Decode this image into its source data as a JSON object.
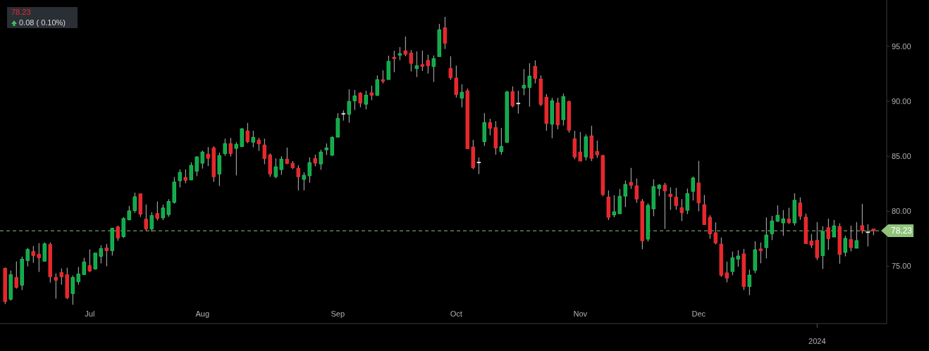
{
  "chart_data": {
    "type": "candlestick",
    "categories": [
      null,
      null,
      null,
      null,
      null,
      null,
      null,
      null,
      null,
      null,
      null,
      null,
      null,
      null,
      null,
      "Jul",
      null,
      null,
      null,
      null,
      null,
      null,
      null,
      null,
      null,
      null,
      null,
      null,
      null,
      null,
      null,
      null,
      null,
      null,
      null,
      "Aug",
      null,
      null,
      null,
      null,
      null,
      null,
      null,
      null,
      null,
      null,
      null,
      null,
      null,
      null,
      null,
      null,
      null,
      null,
      null,
      null,
      null,
      null,
      null,
      "Sep",
      null,
      null,
      null,
      null,
      null,
      null,
      null,
      null,
      null,
      null,
      null,
      null,
      null,
      null,
      null,
      null,
      null,
      null,
      null,
      null,
      "Oct",
      null,
      null,
      null,
      null,
      null,
      null,
      null,
      null,
      null,
      null,
      null,
      null,
      null,
      null,
      null,
      null,
      null,
      null,
      null,
      null,
      null,
      "Nov",
      null,
      null,
      null,
      null,
      null,
      null,
      null,
      null,
      null,
      null,
      null,
      null,
      null,
      null,
      null,
      null,
      null,
      null,
      null,
      null,
      "Dec",
      null,
      null,
      null,
      null,
      null,
      null,
      null,
      null,
      null,
      null,
      null,
      null,
      null,
      null,
      null,
      null,
      null,
      null,
      null,
      null,
      "2024",
      null,
      null,
      null,
      null,
      null,
      null,
      null,
      null,
      null,
      null
    ],
    "ohlc": [
      [
        74.81,
        74.9,
        71.57,
        71.79
      ],
      [
        72.0,
        74.62,
        71.89,
        74.23
      ],
      [
        73.98,
        75.45,
        72.98,
        73.08
      ],
      [
        73.29,
        75.89,
        72.85,
        75.64
      ],
      [
        75.53,
        76.66,
        75.0,
        76.53
      ],
      [
        76.34,
        76.85,
        75.32,
        75.98
      ],
      [
        76.09,
        77.11,
        74.49,
        75.77
      ],
      [
        75.47,
        77.17,
        75.47,
        77.04
      ],
      [
        76.98,
        77.17,
        73.53,
        74.06
      ],
      [
        73.98,
        74.36,
        72.06,
        73.74
      ],
      [
        74.43,
        74.81,
        73.34,
        74.06
      ],
      [
        74.23,
        74.87,
        72.02,
        72.15
      ],
      [
        72.53,
        74.17,
        71.51,
        73.98
      ],
      [
        73.61,
        74.94,
        73.34,
        74.3
      ],
      [
        74.25,
        75.77,
        74.25,
        75.38
      ],
      [
        75.06,
        76.53,
        74.49,
        74.57
      ],
      [
        74.76,
        76.21,
        74.7,
        76.21
      ],
      [
        75.91,
        76.92,
        75.26,
        76.6
      ],
      [
        76.66,
        77.04,
        75.0,
        76.42
      ],
      [
        76.42,
        78.51,
        75.98,
        78.45
      ],
      [
        78.58,
        78.7,
        77.32,
        77.57
      ],
      [
        77.7,
        79.47,
        77.57,
        79.34
      ],
      [
        79.23,
        80.49,
        79.17,
        80.04
      ],
      [
        80.06,
        81.7,
        79.87,
        81.32
      ],
      [
        81.58,
        81.64,
        79.49,
        79.74
      ],
      [
        79.28,
        80.62,
        78.21,
        78.4
      ],
      [
        78.4,
        79.92,
        78.15,
        79.6
      ],
      [
        79.79,
        80.89,
        79.17,
        79.36
      ],
      [
        79.4,
        80.6,
        79.2,
        80.3
      ],
      [
        79.7,
        81.1,
        79.5,
        80.9
      ],
      [
        80.81,
        83.11,
        80.68,
        82.66
      ],
      [
        82.77,
        83.81,
        82.17,
        83.54
      ],
      [
        83.09,
        83.81,
        82.54,
        82.81
      ],
      [
        82.84,
        84.45,
        82.84,
        84.18
      ],
      [
        83.64,
        85.03,
        83.19,
        84.94
      ],
      [
        84.37,
        85.52,
        83.88,
        85.39
      ],
      [
        85.2,
        85.84,
        84.11,
        84.81
      ],
      [
        85.77,
        85.9,
        82.68,
        83.13
      ],
      [
        83.38,
        85.33,
        82.3,
        85.07
      ],
      [
        85.24,
        86.6,
        85.04,
        86.16
      ],
      [
        86.16,
        86.67,
        84.98,
        85.24
      ],
      [
        85.71,
        86.28,
        83.26,
        86.09
      ],
      [
        85.87,
        87.56,
        85.87,
        87.5
      ],
      [
        87.31,
        88.03,
        86.19,
        86.32
      ],
      [
        86.28,
        87.31,
        85.81,
        86.73
      ],
      [
        86.48,
        86.67,
        85.49,
        86.13
      ],
      [
        86.03,
        86.6,
        84.28,
        84.79
      ],
      [
        85.13,
        85.26,
        83.13,
        83.38
      ],
      [
        83.15,
        84.81,
        83.0,
        84.05
      ],
      [
        83.79,
        85.01,
        83.32,
        84.75
      ],
      [
        84.75,
        85.79,
        84.28,
        84.34
      ],
      [
        84.37,
        84.56,
        83.83,
        83.96
      ],
      [
        83.92,
        84.18,
        81.9,
        83.13
      ],
      [
        82.9,
        83.54,
        81.9,
        83.28
      ],
      [
        83.22,
        84.9,
        82.6,
        84.43
      ],
      [
        84.81,
        85.15,
        84.09,
        84.37
      ],
      [
        84.3,
        85.6,
        83.77,
        85.39
      ],
      [
        85.58,
        86.17,
        85.11,
        85.77
      ],
      [
        85.09,
        86.81,
        85.03,
        86.73
      ],
      [
        86.73,
        88.92,
        86.73,
        88.45
      ],
      [
        88.9,
        89.18,
        88.24,
        88.9
      ],
      [
        88.81,
        91.09,
        88.05,
        89.99
      ],
      [
        90.03,
        91.03,
        89.2,
        90.5
      ],
      [
        90.75,
        90.82,
        89.45,
        89.83
      ],
      [
        89.73,
        90.96,
        89.26,
        90.56
      ],
      [
        90.77,
        91.41,
        90.09,
        90.54
      ],
      [
        90.54,
        92.35,
        90.47,
        91.97
      ],
      [
        91.97,
        92.82,
        91.62,
        91.81
      ],
      [
        91.97,
        94.14,
        91.97,
        93.63
      ],
      [
        94.0,
        94.58,
        92.64,
        93.86
      ],
      [
        94.18,
        94.92,
        93.73,
        94.33
      ],
      [
        94.59,
        95.88,
        94.09,
        94.27
      ],
      [
        94.39,
        94.65,
        92.71,
        93.44
      ],
      [
        92.96,
        94.54,
        92.2,
        93.22
      ],
      [
        93.33,
        94.6,
        92.75,
        93.16
      ],
      [
        93.71,
        94.22,
        92.52,
        93.22
      ],
      [
        93.16,
        94.16,
        91.75,
        93.88
      ],
      [
        94.05,
        97.03,
        94.05,
        96.5
      ],
      [
        96.69,
        97.67,
        94.75,
        95.26
      ],
      [
        92.99,
        94.09,
        91.94,
        92.13
      ],
      [
        92.11,
        93.24,
        90.34,
        90.6
      ],
      [
        90.28,
        91.54,
        89.45,
        90.82
      ],
      [
        90.95,
        91.16,
        85.68,
        85.68
      ],
      [
        85.84,
        86.49,
        83.83,
        83.96
      ],
      [
        84.47,
        84.9,
        83.38,
        84.47
      ],
      [
        86.32,
        88.92,
        85.94,
        88.07
      ],
      [
        88.07,
        88.41,
        86.9,
        87.54
      ],
      [
        87.62,
        88.2,
        85.15,
        85.75
      ],
      [
        85.43,
        87.58,
        85.15,
        85.9
      ],
      [
        86.26,
        90.96,
        86.26,
        90.84
      ],
      [
        90.88,
        91.35,
        89.45,
        89.58
      ],
      [
        89.83,
        90.96,
        88.88,
        89.83
      ],
      [
        91.2,
        92.92,
        90.54,
        91.46
      ],
      [
        91.26,
        93.45,
        89.51,
        92.29
      ],
      [
        93.18,
        93.71,
        91.62,
        92.07
      ],
      [
        92.03,
        92.35,
        89.56,
        89.71
      ],
      [
        90.37,
        90.65,
        87.32,
        87.98
      ],
      [
        87.92,
        90.31,
        86.64,
        90.05
      ],
      [
        89.86,
        90.31,
        87.45,
        87.85
      ],
      [
        88.33,
        90.69,
        87.79,
        90.43
      ],
      [
        89.99,
        90.05,
        87.15,
        87.37
      ],
      [
        86.6,
        87.32,
        84.73,
        84.94
      ],
      [
        85.39,
        87.2,
        84.56,
        84.56
      ],
      [
        84.94,
        87.0,
        84.62,
        86.77
      ],
      [
        86.86,
        87.77,
        84.56,
        84.81
      ],
      [
        85.45,
        86.43,
        84.85,
        85.13
      ],
      [
        85.07,
        85.15,
        81.37,
        81.53
      ],
      [
        81.3,
        81.9,
        79.2,
        79.45
      ],
      [
        79.66,
        81.45,
        79.45,
        79.96
      ],
      [
        79.77,
        82.02,
        79.77,
        81.37
      ],
      [
        81.37,
        82.79,
        80.38,
        82.45
      ],
      [
        82.64,
        83.94,
        82.04,
        82.36
      ],
      [
        82.32,
        82.98,
        80.77,
        81.11
      ],
      [
        80.92,
        81.11,
        76.55,
        77.32
      ],
      [
        77.47,
        80.73,
        77.25,
        80.54
      ],
      [
        80.22,
        82.9,
        79.55,
        82.26
      ],
      [
        82.07,
        82.47,
        81.39,
        82.39
      ],
      [
        82.39,
        82.6,
        78.4,
        81.85
      ],
      [
        81.56,
        82.17,
        80.13,
        81.34
      ],
      [
        81.3,
        82.13,
        80.15,
        80.51
      ],
      [
        80.34,
        81.11,
        79.11,
        79.87
      ],
      [
        80.09,
        82.07,
        79.74,
        81.62
      ],
      [
        81.81,
        83.16,
        80.98,
        83.03
      ],
      [
        82.58,
        84.58,
        80.0,
        80.77
      ],
      [
        80.6,
        81.49,
        78.79,
        78.79
      ],
      [
        79.45,
        79.64,
        77.51,
        77.96
      ],
      [
        78.05,
        79.0,
        77.0,
        77.13
      ],
      [
        77.02,
        77.62,
        74.06,
        74.19
      ],
      [
        74.41,
        75.43,
        73.55,
        73.93
      ],
      [
        74.53,
        76.34,
        74.19,
        75.77
      ],
      [
        75.66,
        76.47,
        74.96,
        75.94
      ],
      [
        76.13,
        76.58,
        72.85,
        73.17
      ],
      [
        73.17,
        74.7,
        72.38,
        74.21
      ],
      [
        74.64,
        77.28,
        74.38,
        76.51
      ],
      [
        76.58,
        77.17,
        75.27,
        76.42
      ],
      [
        76.7,
        79.45,
        75.72,
        77.85
      ],
      [
        77.96,
        79.58,
        77.38,
        79.13
      ],
      [
        79.11,
        80.54,
        79.02,
        79.64
      ],
      [
        78.94,
        80.11,
        77.77,
        79.32
      ],
      [
        79.28,
        80.32,
        78.85,
        78.98
      ],
      [
        78.94,
        81.64,
        78.7,
        81.0
      ],
      [
        80.75,
        81.26,
        79.23,
        79.55
      ],
      [
        79.47,
        79.79,
        77.06,
        77.06
      ],
      [
        77.3,
        77.94,
        76.66,
        76.92
      ],
      [
        77.36,
        79.02,
        75.57,
        75.79
      ],
      [
        75.98,
        78.64,
        74.76,
        78.17
      ],
      [
        78.51,
        79.34,
        76.49,
        77.51
      ],
      [
        77.66,
        79.21,
        77.66,
        78.68
      ],
      [
        78.62,
        78.91,
        75.24,
        76.07
      ],
      [
        76.26,
        77.79,
        75.91,
        77.54
      ],
      [
        77.43,
        78.7,
        76.36,
        76.7
      ],
      [
        76.64,
        79.02,
        76.64,
        77.34
      ],
      [
        78.7,
        80.68,
        77.98,
        78.24
      ],
      [
        78.13,
        78.83,
        76.81,
        78.13
      ],
      [
        78.4,
        78.4,
        77.83,
        78.23
      ]
    ],
    "colors": [
      "#e8272b",
      "#14a84b",
      "#e8272b",
      "#14a84b",
      "#14a84b",
      "#e8272b",
      "#e8272b",
      "#14a84b",
      "#e8272b",
      "#e8272b",
      "#e8272b",
      "#e8272b",
      "#14a84b",
      "#14a84b",
      "#14a84b",
      "#e8272b",
      "#14a84b",
      "#14a84b",
      "#e8272b",
      "#14a84b",
      "#e8272b",
      "#14a84b",
      "#14a84b",
      "#14a84b",
      "#e8272b",
      "#e8272b",
      "#14a84b",
      "#e8272b",
      "#14a84b",
      "#14a84b",
      "#14a84b",
      "#14a84b",
      "#e8272b",
      "#14a84b",
      "#14a84b",
      "#14a84b",
      "#e8272b",
      "#e8272b",
      "#14a84b",
      "#14a84b",
      "#e8272b",
      "#14a84b",
      "#14a84b",
      "#e8272b",
      "#14a84b",
      "#e8272b",
      "#e8272b",
      "#e8272b",
      "#14a84b",
      "#14a84b",
      "#e8272b",
      "#e8272b",
      "#e8272b",
      "#14a84b",
      "#14a84b",
      "#e8272b",
      "#14a84b",
      "#14a84b",
      "#14a84b",
      "#14a84b",
      "#d0d0d0",
      "#14a84b",
      "#14a84b",
      "#e8272b",
      "#14a84b",
      "#e8272b",
      "#14a84b",
      "#e8272b",
      "#14a84b",
      "#e8272b",
      "#14a84b",
      "#e8272b",
      "#e8272b",
      "#14a84b",
      "#e8272b",
      "#e8272b",
      "#14a84b",
      "#14a84b",
      "#e8272b",
      "#e8272b",
      "#e8272b",
      "#14a84b",
      "#e8272b",
      "#e8272b",
      "#d0d0d0",
      "#14a84b",
      "#e8272b",
      "#e8272b",
      "#14a84b",
      "#14a84b",
      "#e8272b",
      "#d0d0d0",
      "#14a84b",
      "#14a84b",
      "#e8272b",
      "#e8272b",
      "#e8272b",
      "#14a84b",
      "#e8272b",
      "#14a84b",
      "#e8272b",
      "#e8272b",
      "#e8272b",
      "#14a84b",
      "#e8272b",
      "#e8272b",
      "#e8272b",
      "#e8272b",
      "#14a84b",
      "#14a84b",
      "#14a84b",
      "#e8272b",
      "#e8272b",
      "#e8272b",
      "#14a84b",
      "#14a84b",
      "#14a84b",
      "#e8272b",
      "#e8272b",
      "#e8272b",
      "#e8272b",
      "#14a84b",
      "#14a84b",
      "#e8272b",
      "#e8272b",
      "#e8272b",
      "#e8272b",
      "#e8272b",
      "#e8272b",
      "#14a84b",
      "#14a84b",
      "#e8272b",
      "#14a84b",
      "#14a84b",
      "#e8272b",
      "#14a84b",
      "#14a84b",
      "#14a84b",
      "#14a84b",
      "#e8272b",
      "#14a84b",
      "#e8272b",
      "#e8272b",
      "#e8272b",
      "#e8272b",
      "#14a84b",
      "#e8272b",
      "#14a84b",
      "#e8272b",
      "#14a84b",
      "#e8272b",
      "#14a84b",
      "#e8272b",
      "#d0d0d0",
      "#e8272b"
    ],
    "ylim": [
      69.8,
      99.2
    ],
    "yticks": [
      {
        "value": 75,
        "label": "75.00"
      },
      {
        "value": 80,
        "label": "80.00"
      },
      {
        "value": 85,
        "label": "85.00"
      },
      {
        "value": 90,
        "label": "90.00"
      },
      {
        "value": 95,
        "label": "95.00"
      }
    ],
    "ref_lines": [
      {
        "axis": "y",
        "value": 78.23,
        "label": "78.23",
        "color": "#8fc47a",
        "line_style": "dashed"
      }
    ],
    "annotations": [
      "78.23",
      "0.08 ( 0.10%)"
    ]
  }
}
